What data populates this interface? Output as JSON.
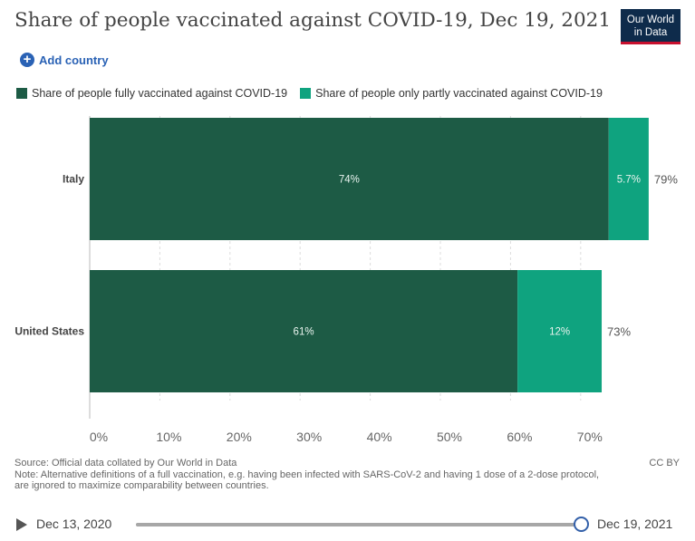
{
  "header": {
    "title": "Share of people vaccinated against COVID-19, Dec 19, 2021",
    "logo_line1": "Our World",
    "logo_line2": "in Data"
  },
  "controls": {
    "add_country_label": "Add country",
    "add_icon": "plus-circle-icon"
  },
  "colors": {
    "fully": "#1d5b45",
    "partly": "#0fa37f",
    "grid": "#dddddd",
    "accent": "#2a62b5",
    "logo_bg": "#0e2b4b",
    "logo_bar": "#c8102e"
  },
  "chart_data": {
    "type": "bar",
    "orientation": "horizontal",
    "stacked": true,
    "categories": [
      "Italy",
      "United States"
    ],
    "series": [
      {
        "name": "Share of people fully vaccinated against COVID-19",
        "values": [
          74,
          61
        ],
        "labels": [
          "74%",
          "61%"
        ]
      },
      {
        "name": "Share of people only partly vaccinated against COVID-19",
        "values": [
          5.7,
          12
        ],
        "labels": [
          "5.7%",
          "12%"
        ]
      }
    ],
    "totals": [
      79,
      73
    ],
    "total_labels": [
      "79%",
      "73%"
    ],
    "xlim": [
      0,
      80
    ],
    "xticks": [
      0,
      10,
      20,
      30,
      40,
      50,
      60,
      70
    ],
    "xtick_labels": [
      "0%",
      "10%",
      "20%",
      "30%",
      "40%",
      "50%",
      "60%",
      "70%"
    ],
    "grid": true,
    "legend_position": "top"
  },
  "footer": {
    "source": "Source: Official data collated by Our World in Data",
    "note_line1": "Note: Alternative definitions of a full vaccination, e.g. having been infected with SARS-CoV-2 and having 1 dose of a 2-dose protocol,",
    "note_line2": "are ignored to maximize comparability between countries.",
    "license": "CC BY"
  },
  "timeline": {
    "start_label": "Dec 13, 2020",
    "end_label": "Dec 19, 2021",
    "position": 1.0,
    "play_icon": "play-icon"
  }
}
